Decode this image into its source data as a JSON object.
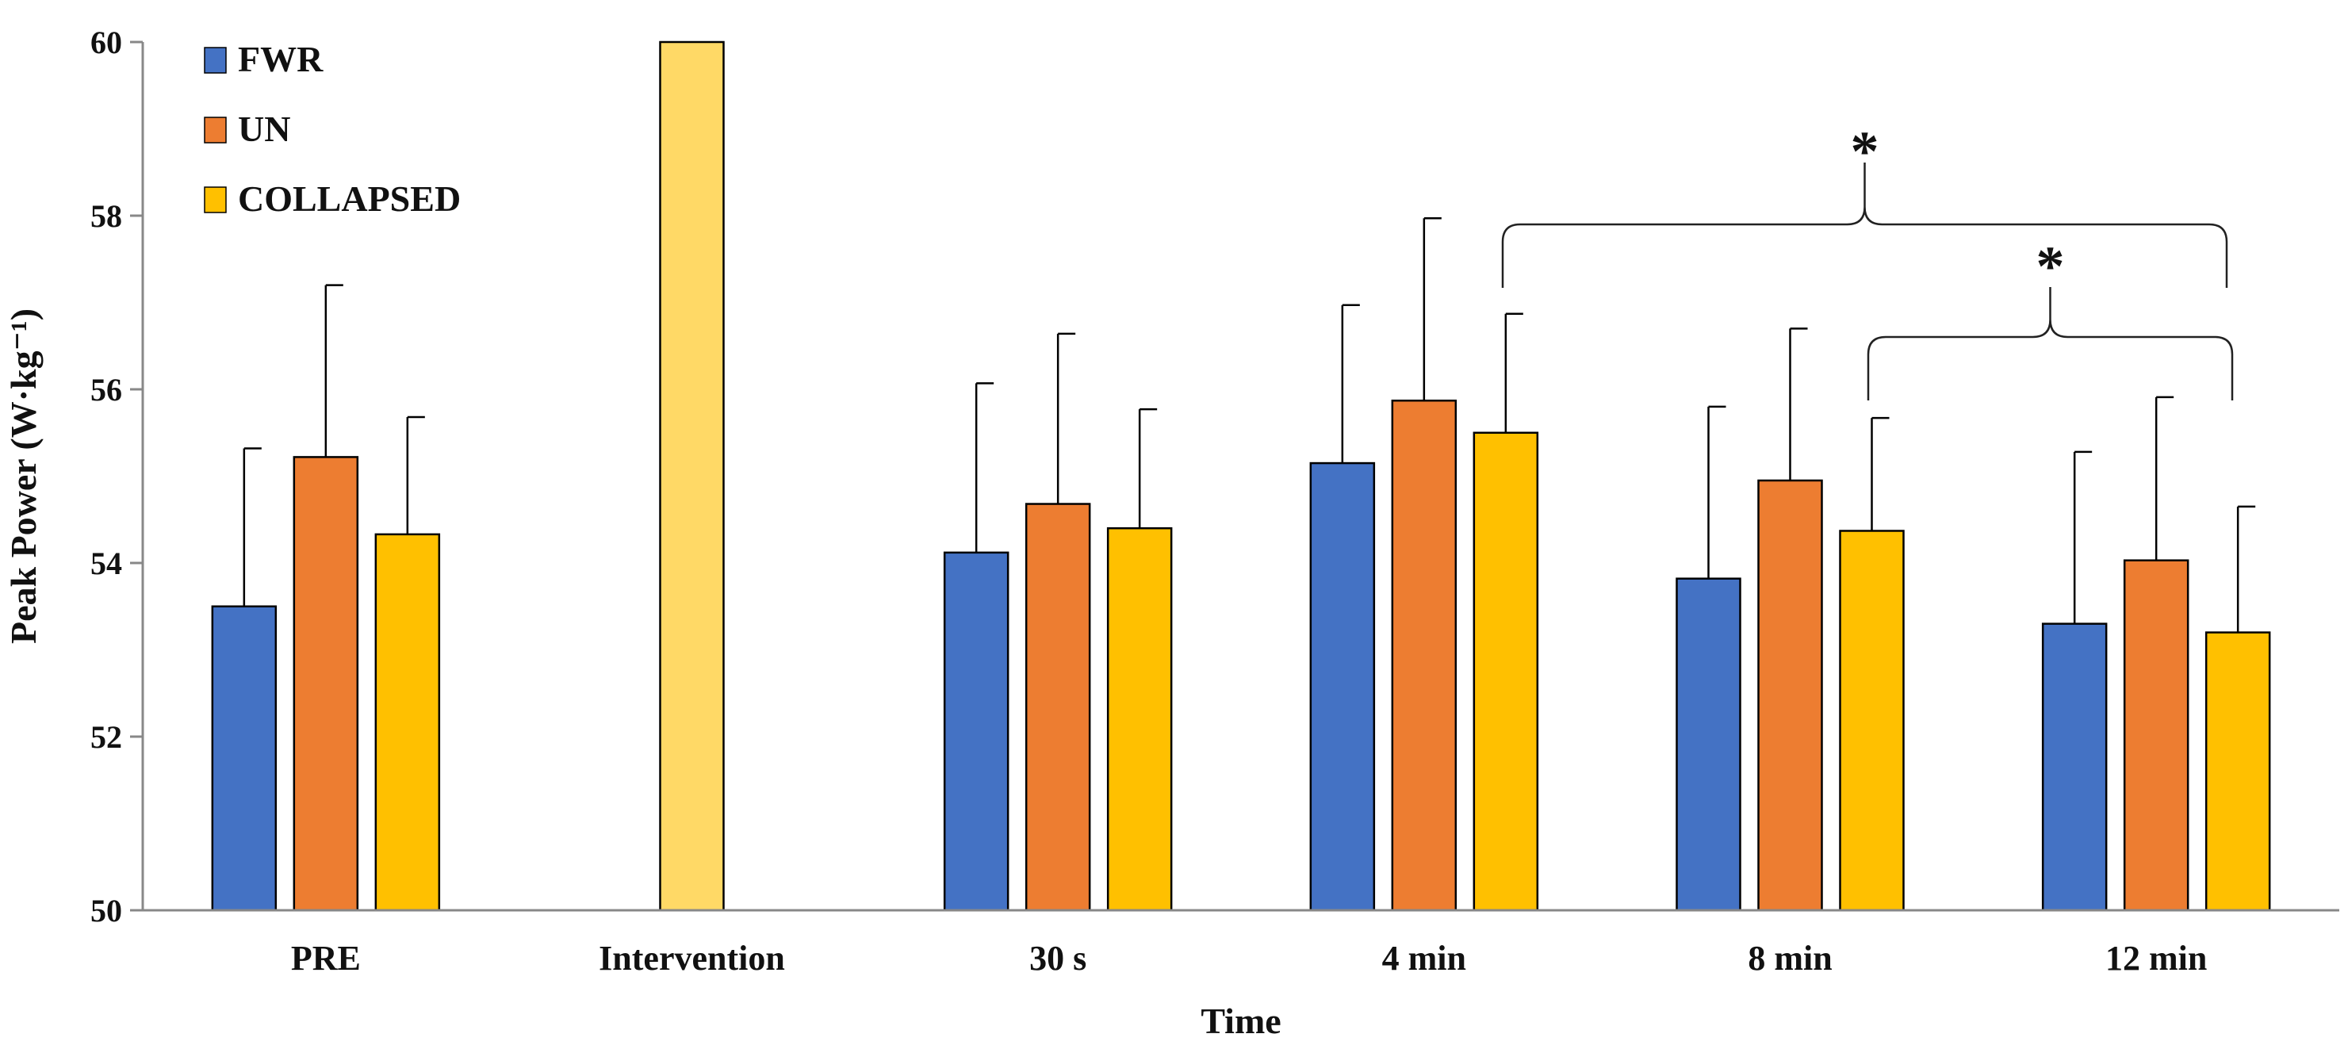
{
  "chart_data": {
    "type": "bar",
    "xlabel": "Time",
    "ylabel": "Peak Power (W·kg⁻¹)",
    "ylim": [
      50,
      60
    ],
    "yticks": [
      50,
      52,
      54,
      56,
      58,
      60
    ],
    "categories": [
      "PRE",
      "Intervention",
      "30 s",
      "4 min",
      "8 min",
      "12 min"
    ],
    "series": [
      {
        "name": "FWR",
        "color": "#4472C4",
        "values": [
          53.5,
          null,
          54.12,
          55.15,
          53.82,
          53.3
        ],
        "errors": [
          1.82,
          null,
          1.95,
          1.82,
          1.98,
          1.98
        ]
      },
      {
        "name": "UN",
        "color": "#ED7D31",
        "values": [
          55.22,
          null,
          54.68,
          55.87,
          54.95,
          54.03
        ],
        "errors": [
          1.98,
          null,
          1.96,
          2.1,
          1.75,
          1.88
        ]
      },
      {
        "name": "COLLAPSED",
        "color": "#FFC000",
        "values": [
          54.33,
          null,
          54.4,
          55.5,
          54.37,
          53.2
        ],
        "errors": [
          1.35,
          null,
          1.37,
          1.37,
          1.3,
          1.45
        ]
      }
    ],
    "intervention_bar": {
      "category": "Intervention",
      "value": 60,
      "color": "#FFD966"
    },
    "legend": {
      "position": "top-left",
      "entries": [
        "FWR",
        "UN",
        "COLLAPSED"
      ]
    },
    "annotations": [
      {
        "label": "*",
        "from": "4 min",
        "to": "12 min",
        "meaning": "significance bracket"
      },
      {
        "label": "*",
        "from": "8 min",
        "to": "12 min",
        "meaning": "significance bracket"
      }
    ]
  }
}
